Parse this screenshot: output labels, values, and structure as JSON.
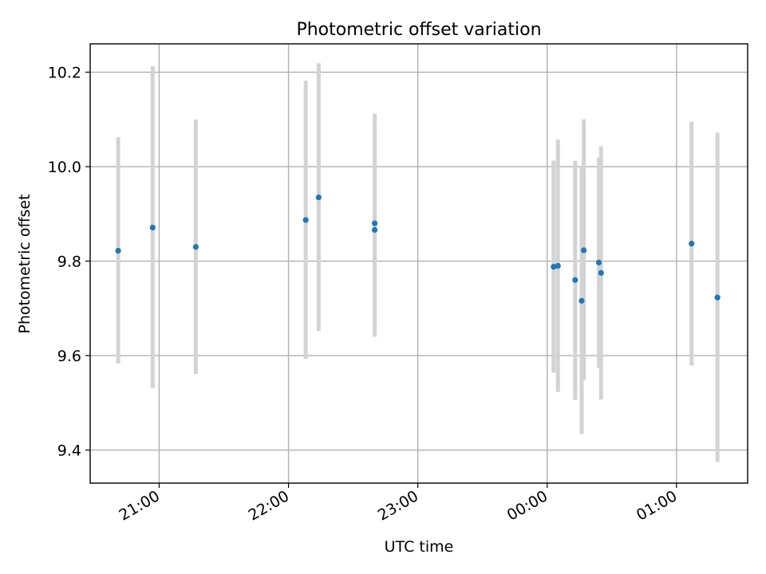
{
  "chart_data": {
    "type": "scatter",
    "title": "Photometric offset variation",
    "xlabel": "UTC time",
    "ylabel": "Photometric offset",
    "x_unit": "UTC time (HH:MM, spans midnight)",
    "xlim": [
      "20:28",
      "01:33"
    ],
    "ylim": [
      9.33,
      10.26
    ],
    "grid": true,
    "x_ticks": [
      {
        "value": "21:00",
        "label": "21:00"
      },
      {
        "value": "22:00",
        "label": "22:00"
      },
      {
        "value": "23:00",
        "label": "23:00"
      },
      {
        "value": "00:00",
        "label": "00:00"
      },
      {
        "value": "01:00",
        "label": "01:00"
      }
    ],
    "y_ticks": [
      {
        "value": 9.4,
        "label": "9.4"
      },
      {
        "value": 9.6,
        "label": "9.6"
      },
      {
        "value": 9.8,
        "label": "9.8"
      },
      {
        "value": 10.0,
        "label": "10.0"
      },
      {
        "value": 10.2,
        "label": "10.2"
      }
    ],
    "colors": {
      "points": "#1f77b4",
      "errorbars": "#d3d3d3",
      "grid": "#b0b0b0"
    },
    "series": [
      {
        "points": [
          {
            "x": "20:41",
            "y": 9.822,
            "ylow": 9.583,
            "yhigh": 10.062
          },
          {
            "x": "20:57",
            "y": 9.871,
            "ylow": 9.531,
            "yhigh": 10.213
          },
          {
            "x": "21:17",
            "y": 9.83,
            "ylow": 9.561,
            "yhigh": 10.1
          },
          {
            "x": "22:08",
            "y": 9.887,
            "ylow": 9.593,
            "yhigh": 10.182
          },
          {
            "x": "22:14",
            "y": 9.935,
            "ylow": 9.652,
            "yhigh": 10.219
          },
          {
            "x": "22:40",
            "y": 9.88,
            "ylow": 9.652,
            "yhigh": 10.112
          },
          {
            "x": "22:40",
            "y": 9.866,
            "ylow": 9.64,
            "yhigh": 10.093
          },
          {
            "x": "00:03",
            "y": 9.788,
            "ylow": 9.564,
            "yhigh": 10.013
          },
          {
            "x": "00:05",
            "y": 9.79,
            "ylow": 9.523,
            "yhigh": 10.057
          },
          {
            "x": "00:13",
            "y": 9.76,
            "ylow": 9.506,
            "yhigh": 10.012
          },
          {
            "x": "00:16",
            "y": 9.716,
            "ylow": 9.434,
            "yhigh": 9.998
          },
          {
            "x": "00:17",
            "y": 9.823,
            "ylow": 9.548,
            "yhigh": 10.1
          },
          {
            "x": "00:24",
            "y": 9.797,
            "ylow": 9.574,
            "yhigh": 10.019
          },
          {
            "x": "00:25",
            "y": 9.775,
            "ylow": 9.507,
            "yhigh": 10.043
          },
          {
            "x": "01:07",
            "y": 9.837,
            "ylow": 9.579,
            "yhigh": 10.095
          },
          {
            "x": "01:19",
            "y": 9.723,
            "ylow": 9.375,
            "yhigh": 10.072
          }
        ]
      }
    ]
  }
}
